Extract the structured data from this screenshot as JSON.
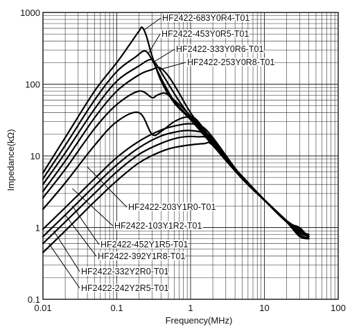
{
  "chart_data": {
    "type": "line",
    "title": "",
    "xlabel": "Frequency(MHz)",
    "ylabel": "Impedance(kΩ)",
    "xscale": "log",
    "yscale": "log",
    "xlim": [
      0.01,
      100
    ],
    "ylim": [
      0.1,
      1000
    ],
    "grid": true,
    "legend": "inline labels with leader lines",
    "x_ticks": [
      "0.01",
      "0.1",
      "1",
      "10",
      "100"
    ],
    "y_ticks": [
      "0.1",
      "1",
      "10",
      "100",
      "1000"
    ],
    "series": [
      {
        "name": "HF2422-683Y0R4-T01",
        "points": [
          [
            0.01,
            5.8
          ],
          [
            0.02,
            18
          ],
          [
            0.05,
            80
          ],
          [
            0.1,
            200
          ],
          [
            0.15,
            360
          ],
          [
            0.2,
            550
          ],
          [
            0.22,
            620
          ],
          [
            0.25,
            480
          ],
          [
            0.3,
            250
          ],
          [
            0.4,
            110
          ],
          [
            0.6,
            55
          ],
          [
            1,
            32
          ],
          [
            2,
            14
          ],
          [
            5,
            4.8
          ],
          [
            10,
            2.4
          ],
          [
            20,
            1.2
          ],
          [
            30,
            0.95
          ],
          [
            40,
            0.75
          ]
        ]
      },
      {
        "name": "HF2422-453Y0R5-T01",
        "points": [
          [
            0.01,
            4.8
          ],
          [
            0.02,
            14
          ],
          [
            0.05,
            60
          ],
          [
            0.1,
            150
          ],
          [
            0.18,
            240
          ],
          [
            0.24,
            290
          ],
          [
            0.3,
            220
          ],
          [
            0.4,
            120
          ],
          [
            0.6,
            58
          ],
          [
            1,
            33
          ],
          [
            2,
            14.2
          ],
          [
            5,
            4.8
          ],
          [
            10,
            2.4
          ],
          [
            20,
            1.2
          ],
          [
            30,
            0.9
          ],
          [
            40,
            0.8
          ]
        ]
      },
      {
        "name": "HF2422-333Y0R6-T01",
        "points": [
          [
            0.01,
            4.0
          ],
          [
            0.02,
            11
          ],
          [
            0.05,
            45
          ],
          [
            0.1,
            110
          ],
          [
            0.2,
            180
          ],
          [
            0.28,
            220
          ],
          [
            0.33,
            200
          ],
          [
            0.45,
            120
          ],
          [
            0.7,
            58
          ],
          [
            1,
            35
          ],
          [
            2,
            14.5
          ],
          [
            5,
            4.9
          ],
          [
            10,
            2.4
          ],
          [
            20,
            1.2
          ],
          [
            30,
            1.0
          ],
          [
            40,
            0.7
          ]
        ]
      },
      {
        "name": "HF2422-253Y0R8-T01",
        "points": [
          [
            0.01,
            3.2
          ],
          [
            0.02,
            8.5
          ],
          [
            0.05,
            34
          ],
          [
            0.1,
            80
          ],
          [
            0.2,
            135
          ],
          [
            0.3,
            160
          ],
          [
            0.38,
            170
          ],
          [
            0.5,
            130
          ],
          [
            0.7,
            75
          ],
          [
            1,
            40
          ],
          [
            2,
            15
          ],
          [
            5,
            4.9
          ],
          [
            10,
            2.4
          ],
          [
            20,
            1.2
          ],
          [
            30,
            0.85
          ],
          [
            40,
            0.75
          ]
        ]
      },
      {
        "name": "HF2422-203Y1R0-T01",
        "points": [
          [
            0.01,
            2.6
          ],
          [
            0.02,
            6.5
          ],
          [
            0.05,
            24
          ],
          [
            0.1,
            52
          ],
          [
            0.2,
            80
          ],
          [
            0.3,
            65
          ],
          [
            0.35,
            70
          ],
          [
            0.45,
            75
          ],
          [
            0.6,
            60
          ],
          [
            1,
            36
          ],
          [
            2,
            15
          ],
          [
            5,
            4.9
          ],
          [
            10,
            2.4
          ],
          [
            20,
            1.2
          ],
          [
            30,
            0.8
          ],
          [
            40,
            0.7
          ]
        ]
      },
      {
        "name": "HF2422-103Y1R2-T01",
        "points": [
          [
            0.01,
            1.8
          ],
          [
            0.02,
            4.2
          ],
          [
            0.05,
            14
          ],
          [
            0.1,
            30
          ],
          [
            0.2,
            40
          ],
          [
            0.3,
            20
          ],
          [
            0.4,
            22
          ],
          [
            0.6,
            30
          ],
          [
            0.9,
            35
          ],
          [
            1.2,
            32
          ],
          [
            2,
            16
          ],
          [
            5,
            4.9
          ],
          [
            10,
            2.4
          ],
          [
            20,
            1.2
          ],
          [
            30,
            0.75
          ],
          [
            40,
            0.7
          ]
        ]
      },
      {
        "name": "HF2422-452Y1R5-T01",
        "points": [
          [
            0.01,
            0.95
          ],
          [
            0.02,
            1.9
          ],
          [
            0.05,
            4.8
          ],
          [
            0.1,
            9.5
          ],
          [
            0.2,
            16
          ],
          [
            0.4,
            23
          ],
          [
            0.7,
            27
          ],
          [
            1,
            28
          ],
          [
            1.4,
            26
          ],
          [
            2,
            18
          ],
          [
            5,
            5.0
          ],
          [
            10,
            2.4
          ],
          [
            20,
            1.2
          ],
          [
            30,
            0.8
          ],
          [
            40,
            0.7
          ]
        ]
      },
      {
        "name": "HF2422-392Y1R8-T01",
        "points": [
          [
            0.01,
            0.75
          ],
          [
            0.02,
            1.5
          ],
          [
            0.05,
            3.8
          ],
          [
            0.1,
            7.5
          ],
          [
            0.2,
            13
          ],
          [
            0.4,
            19
          ],
          [
            0.7,
            22
          ],
          [
            1,
            22.5
          ],
          [
            1.5,
            21
          ],
          [
            2,
            17
          ],
          [
            5,
            5.0
          ],
          [
            10,
            2.4
          ],
          [
            20,
            1.2
          ],
          [
            30,
            0.85
          ],
          [
            40,
            0.75
          ]
        ]
      },
      {
        "name": "HF2422-332Y2R0-T01",
        "points": [
          [
            0.01,
            0.6
          ],
          [
            0.02,
            1.2
          ],
          [
            0.05,
            3.0
          ],
          [
            0.1,
            6.0
          ],
          [
            0.2,
            10.5
          ],
          [
            0.4,
            15
          ],
          [
            0.7,
            18
          ],
          [
            1.2,
            18.5
          ],
          [
            2,
            16
          ],
          [
            5,
            5.1
          ],
          [
            10,
            2.4
          ],
          [
            20,
            1.25
          ],
          [
            30,
            0.95
          ],
          [
            40,
            0.75
          ]
        ]
      },
      {
        "name": "HF2422-242Y2R5-T01",
        "points": [
          [
            0.01,
            0.45
          ],
          [
            0.02,
            0.9
          ],
          [
            0.05,
            2.3
          ],
          [
            0.1,
            4.5
          ],
          [
            0.2,
            8
          ],
          [
            0.4,
            11.5
          ],
          [
            0.7,
            13.5
          ],
          [
            1.5,
            14.8
          ],
          [
            2,
            14
          ],
          [
            5,
            5.2
          ],
          [
            10,
            2.45
          ],
          [
            20,
            1.25
          ],
          [
            30,
            0.85
          ],
          [
            40,
            0.8
          ]
        ]
      }
    ],
    "annotations": [
      {
        "series": 0,
        "at": [
          0.24,
          580
        ]
      },
      {
        "series": 1,
        "at": [
          0.27,
          270
        ]
      },
      {
        "series": 2,
        "at": [
          0.32,
          205
        ]
      },
      {
        "series": 3,
        "at": [
          0.38,
          160
        ]
      },
      {
        "series": 4,
        "at": [
          0.04,
          7
        ]
      },
      {
        "series": 5,
        "at": [
          0.025,
          3.5
        ]
      },
      {
        "series": 6,
        "at": [
          0.025,
          2.0
        ]
      },
      {
        "series": 7,
        "at": [
          0.02,
          1.5
        ]
      },
      {
        "series": 8,
        "at": [
          0.014,
          0.9
        ]
      },
      {
        "series": 9,
        "at": [
          0.012,
          0.6
        ]
      }
    ]
  }
}
